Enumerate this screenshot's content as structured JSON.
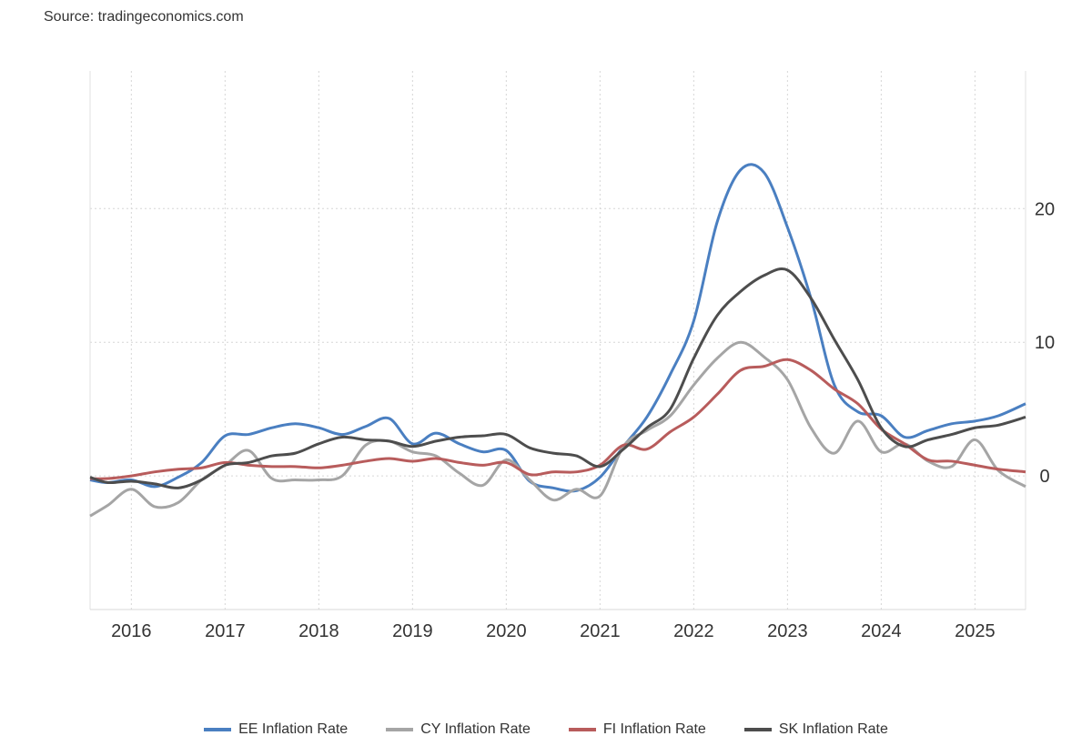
{
  "source": "Source: tradingeconomics.com",
  "chart_data": {
    "type": "line",
    "title": "",
    "xlabel": "",
    "ylabel": "",
    "xlim": [
      2015.56,
      2025.54
    ],
    "ylim": [
      -10,
      30.3
    ],
    "grid": true,
    "legend_position": "bottom",
    "x_ticks": [
      {
        "value": 2016,
        "label": "2016"
      },
      {
        "value": 2017,
        "label": "2017"
      },
      {
        "value": 2018,
        "label": "2018"
      },
      {
        "value": 2019,
        "label": "2019"
      },
      {
        "value": 2020,
        "label": "2020"
      },
      {
        "value": 2021,
        "label": "2021"
      },
      {
        "value": 2022,
        "label": "2022"
      },
      {
        "value": 2023,
        "label": "2023"
      },
      {
        "value": 2024,
        "label": "2024"
      },
      {
        "value": 2025,
        "label": "2025"
      }
    ],
    "y_ticks": [
      {
        "value": 0,
        "label": "0"
      },
      {
        "value": 10,
        "label": "10"
      },
      {
        "value": 20,
        "label": "20"
      }
    ],
    "x": [
      2015.56,
      2015.75,
      2016.0,
      2016.25,
      2016.5,
      2016.75,
      2017.0,
      2017.25,
      2017.5,
      2017.75,
      2018.0,
      2018.25,
      2018.5,
      2018.75,
      2019.0,
      2019.25,
      2019.5,
      2019.75,
      2020.0,
      2020.25,
      2020.5,
      2020.75,
      2021.0,
      2021.25,
      2021.5,
      2021.75,
      2022.0,
      2022.25,
      2022.5,
      2022.75,
      2023.0,
      2023.25,
      2023.5,
      2023.75,
      2024.0,
      2024.25,
      2024.5,
      2024.75,
      2025.0,
      2025.25,
      2025.54
    ],
    "series": [
      {
        "name": "EE Inflation Rate",
        "color": "#4a7fc1",
        "values": [
          -0.3,
          -0.5,
          -0.3,
          -0.8,
          -0.1,
          1.0,
          3.0,
          3.1,
          3.6,
          3.9,
          3.6,
          3.1,
          3.7,
          4.3,
          2.4,
          3.2,
          2.4,
          1.8,
          1.9,
          -0.4,
          -0.9,
          -1.1,
          -0.1,
          2.2,
          4.4,
          7.6,
          11.6,
          19.0,
          22.9,
          22.7,
          18.6,
          13.3,
          6.8,
          4.8,
          4.5,
          2.9,
          3.4,
          3.9,
          4.1,
          4.5,
          5.4
        ]
      },
      {
        "name": "CY Inflation Rate",
        "color": "#a5a5a5",
        "values": [
          -3.0,
          -2.2,
          -1.0,
          -2.3,
          -2.0,
          -0.3,
          0.8,
          1.9,
          -0.2,
          -0.3,
          -0.3,
          0.0,
          2.3,
          2.6,
          1.8,
          1.5,
          0.2,
          -0.7,
          1.2,
          -0.3,
          -1.8,
          -1.0,
          -1.5,
          2.2,
          3.4,
          4.5,
          6.8,
          8.8,
          10.0,
          8.9,
          7.2,
          3.6,
          1.7,
          4.1,
          1.8,
          2.4,
          1.1,
          0.7,
          2.7,
          0.4,
          -0.8
        ]
      },
      {
        "name": "FI Inflation Rate",
        "color": "#b85c5c",
        "values": [
          -0.2,
          -0.2,
          0.0,
          0.3,
          0.5,
          0.6,
          1.0,
          0.8,
          0.7,
          0.7,
          0.6,
          0.8,
          1.1,
          1.3,
          1.1,
          1.3,
          1.0,
          0.8,
          1.0,
          0.1,
          0.3,
          0.3,
          0.8,
          2.3,
          2.0,
          3.3,
          4.4,
          6.1,
          7.9,
          8.2,
          8.7,
          7.9,
          6.5,
          5.4,
          3.5,
          2.4,
          1.2,
          1.1,
          0.8,
          0.5,
          0.3
        ]
      },
      {
        "name": "SK Inflation Rate",
        "color": "#4d4d4d",
        "values": [
          -0.1,
          -0.5,
          -0.4,
          -0.6,
          -0.9,
          -0.3,
          0.8,
          1.0,
          1.5,
          1.7,
          2.4,
          2.9,
          2.7,
          2.6,
          2.2,
          2.6,
          2.9,
          3.0,
          3.1,
          2.1,
          1.7,
          1.5,
          0.7,
          2.0,
          3.6,
          5.0,
          8.8,
          12.0,
          13.8,
          15.0,
          15.4,
          13.3,
          10.2,
          7.2,
          3.6,
          2.2,
          2.7,
          3.1,
          3.6,
          3.8,
          4.4
        ]
      }
    ]
  }
}
